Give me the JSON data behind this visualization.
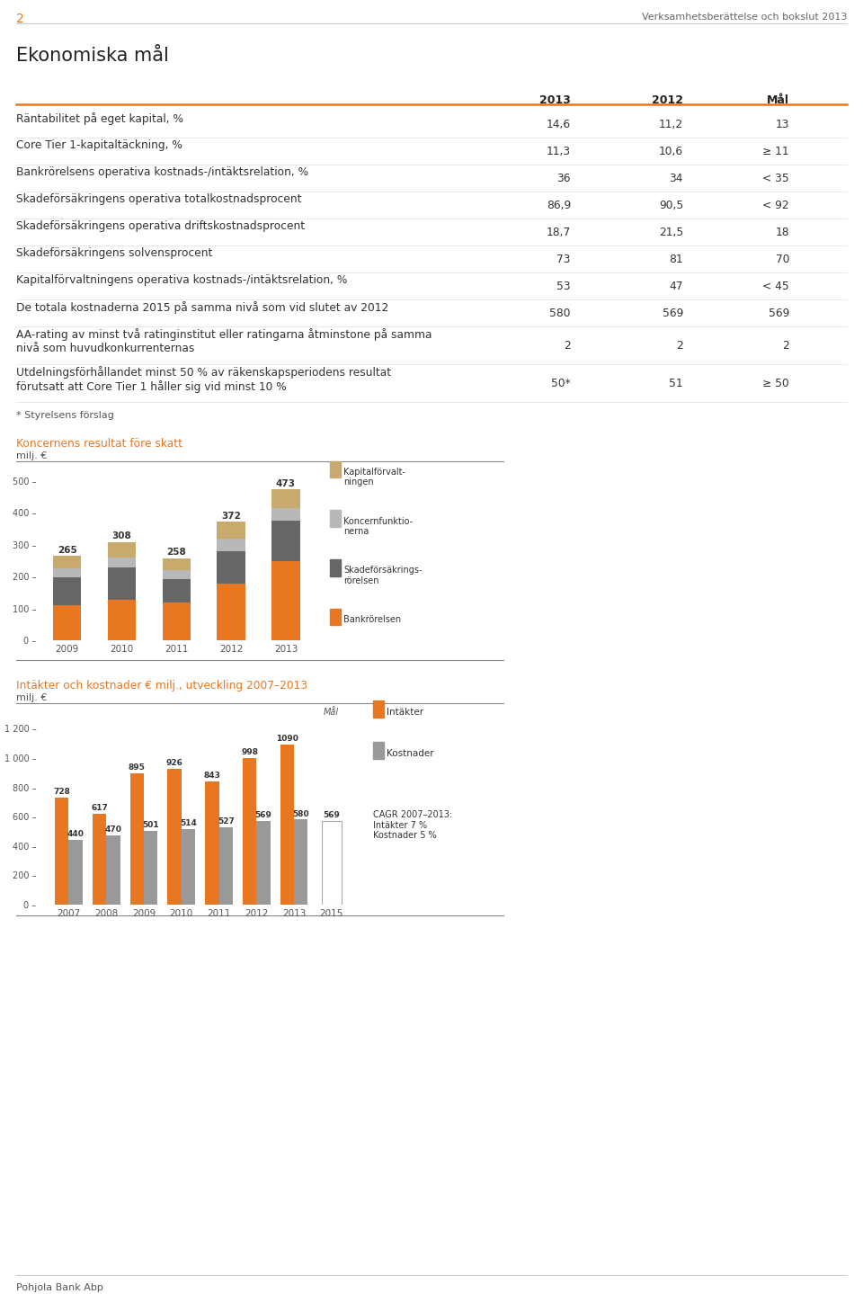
{
  "page_num": "2",
  "header_right": "Verksamhetsberättelse och bokslut 2013",
  "title": "Ekonomiska mål",
  "col_headers": [
    "2013",
    "2012",
    "Mål"
  ],
  "rows": [
    {
      "label": "Räntabilitet på eget kapital, %",
      "v2013": "14,6",
      "v2012": "11,2",
      "mal": "13",
      "lines": 1
    },
    {
      "label": "Core Tier 1-kapitaltäckning, %",
      "v2013": "11,3",
      "v2012": "10,6",
      "mal": "≥ 11",
      "lines": 1
    },
    {
      "label": "Bankrörelsens operativa kostnads-/intäktsrelation, %",
      "v2013": "36",
      "v2012": "34",
      "mal": "< 35",
      "lines": 1
    },
    {
      "label": "Skadeförsäkringens operativa totalkostnadsprocent",
      "v2013": "86,9",
      "v2012": "90,5",
      "mal": "< 92",
      "lines": 1
    },
    {
      "label": "Skadeförsäkringens operativa driftskostnadsprocent",
      "v2013": "18,7",
      "v2012": "21,5",
      "mal": "18",
      "lines": 1
    },
    {
      "label": "Skadeförsäkringens solvensprocent",
      "v2013": "73",
      "v2012": "81",
      "mal": "70",
      "lines": 1
    },
    {
      "label": "Kapitalförvaltningens operativa kostnads-/intäktsrelation, %",
      "v2013": "53",
      "v2012": "47",
      "mal": "< 45",
      "lines": 1
    },
    {
      "label": "De totala kostnaderna 2015 på samma nivå som vid slutet av 2012",
      "v2013": "580",
      "v2012": "569",
      "mal": "569",
      "lines": 1
    },
    {
      "label": "AA-rating av minst två ratinginstitut eller ratingarna åtminstone på samma\nnivå som huvudkonkurrenternas",
      "v2013": "2",
      "v2012": "2",
      "mal": "2",
      "lines": 2
    }
  ],
  "last_row_label": "Utdelningsförhållandet minst 50 % av räkenskapsperiodens resultat\nförutsatt att Core Tier 1 håller sig vid minst 10 %",
  "last_row_v2013": "50*",
  "last_row_v2012": "51",
  "last_row_mal": "≥ 50",
  "footnote": "* Styrelsens förslag",
  "chart1_title": "Koncernens resultat före skatt",
  "chart1_ylabel": "milj. €",
  "chart1_years": [
    "2009",
    "2010",
    "2011",
    "2012",
    "2013"
  ],
  "chart1_totals": [
    265,
    308,
    258,
    372,
    473
  ],
  "chart1_bank": [
    110,
    128,
    118,
    178,
    248
  ],
  "chart1_skade": [
    88,
    100,
    75,
    102,
    128
  ],
  "chart1_koncern": [
    28,
    32,
    28,
    38,
    38
  ],
  "chart1_kapital": [
    39,
    48,
    37,
    54,
    59
  ],
  "chart1_colors": {
    "Kapitalförvaltningen": "#c8a96e",
    "Koncernfunktionerna": "#b8b8b8",
    "Skadeförsäkringsrörelsen": "#666666",
    "Bankrörelsen": "#e87722"
  },
  "chart2_title": "Intäkter och kostnader € milj., utveckling 2007–2013",
  "chart2_ylabel": "milj. €",
  "chart2_years": [
    "2007",
    "2008",
    "2009",
    "2010",
    "2011",
    "2012",
    "2013",
    "2015"
  ],
  "chart2_intakter": [
    728,
    617,
    895,
    926,
    843,
    998,
    1090,
    null
  ],
  "chart2_kostnader": [
    440,
    470,
    501,
    514,
    527,
    569,
    580,
    569
  ],
  "chart2_intakter_color": "#e87722",
  "chart2_kostnader_color": "#999999",
  "chart2_cagr_text": "CAGR 2007–2013:\nIntäkter 7 %\nKostnader 5 %",
  "orange_color": "#e87722",
  "text_color": "#333333",
  "bg_color": "#ffffff",
  "footer_text": "Pohjola Bank Abp"
}
